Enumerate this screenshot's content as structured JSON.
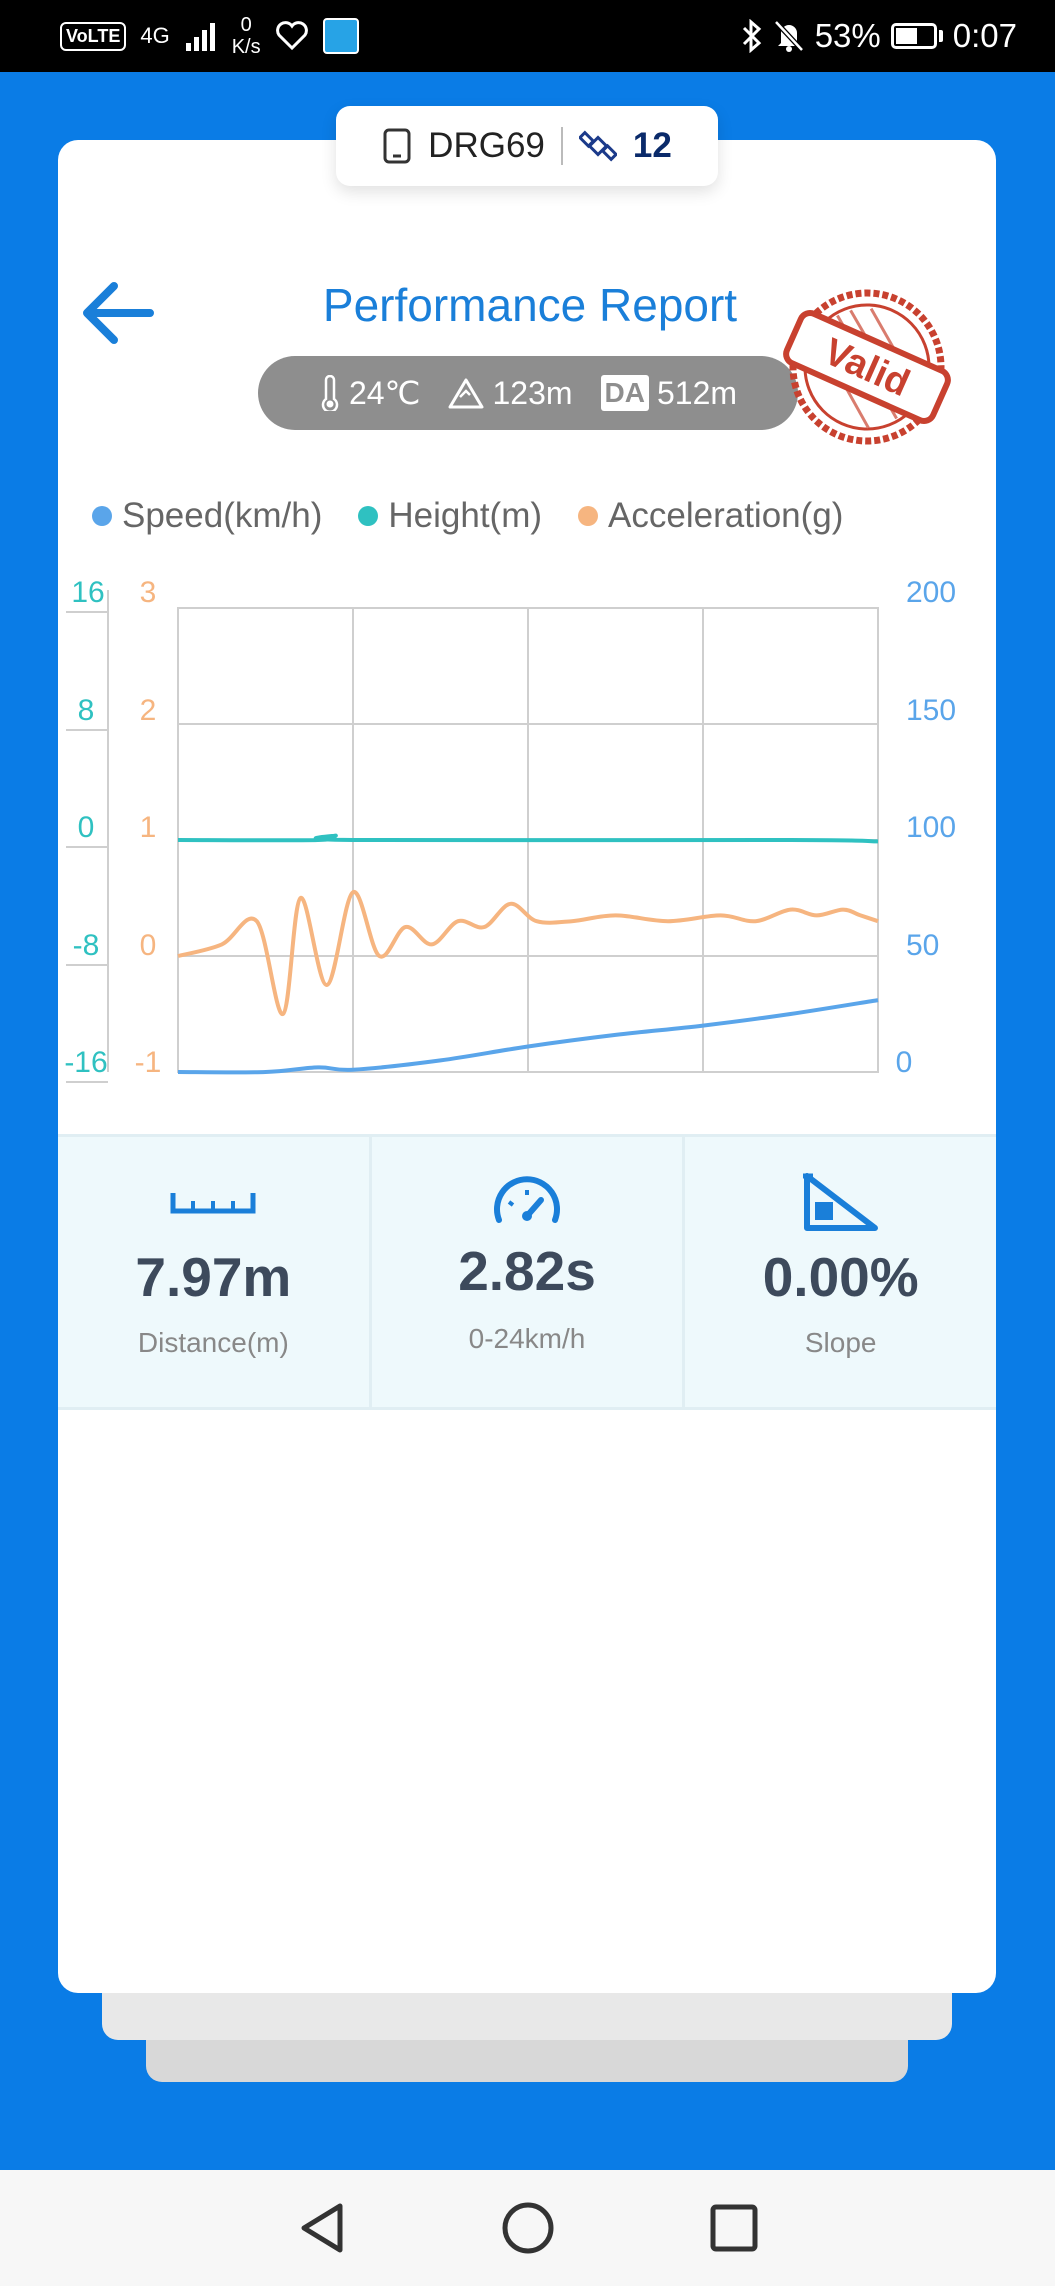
{
  "status_bar": {
    "volte": "VoLTE",
    "network": "4G",
    "net_speed_value": "0",
    "net_speed_unit": "K/s",
    "battery_percent": "53%",
    "time": "0:07"
  },
  "device": {
    "name": "DRG69",
    "satellites": "12"
  },
  "header": {
    "title": "Performance Report",
    "stamp": "Valid"
  },
  "conditions": {
    "temperature": "24℃",
    "altitude": "123m",
    "da_label": "DA",
    "density_altitude": "512m"
  },
  "colors": {
    "speed": "#5aa5ea",
    "height": "#2fc1c1",
    "acceleration": "#f6b580",
    "accent": "#1a7fd9",
    "background": "#0a7ce6"
  },
  "chart_data": {
    "type": "line",
    "legend_position": "top",
    "grid": true,
    "series": [
      {
        "name": "Speed(km/h)",
        "axis": "right",
        "ylim": [
          0,
          200
        ],
        "ticks": [
          "200",
          "150",
          "100",
          "50",
          "0"
        ],
        "x": [
          0,
          0.5,
          0.8,
          1.0,
          1.5,
          2.0,
          2.5,
          3.0,
          3.5,
          4.0
        ],
        "values": [
          0,
          0,
          2,
          1,
          5,
          11,
          16,
          20,
          25,
          31
        ]
      },
      {
        "name": "Height(m)",
        "axis": "left-outer",
        "ylim": [
          -16,
          16
        ],
        "ticks": [
          "16",
          "8",
          "0",
          "-8",
          "-16"
        ],
        "x": [
          0,
          0.8,
          0.9,
          1.0,
          3.5,
          4.0
        ],
        "values": [
          0,
          0,
          0.3,
          0,
          0,
          -0.1
        ]
      },
      {
        "name": "Acceleration(g)",
        "axis": "left-inner",
        "ylim": [
          -1,
          3
        ],
        "ticks": [
          "3",
          "2",
          "1",
          "0",
          "-1"
        ],
        "x": [
          0,
          0.25,
          0.45,
          0.6,
          0.7,
          0.85,
          1.0,
          1.15,
          1.3,
          1.45,
          1.6,
          1.75,
          1.9,
          2.05,
          2.25,
          2.5,
          2.8,
          3.1,
          3.3,
          3.5,
          3.65,
          3.8,
          3.9,
          4.0
        ],
        "values": [
          0,
          0.1,
          0.3,
          -0.5,
          0.5,
          -0.25,
          0.55,
          0.0,
          0.25,
          0.1,
          0.3,
          0.25,
          0.45,
          0.3,
          0.3,
          0.35,
          0.3,
          0.35,
          0.3,
          0.4,
          0.35,
          0.4,
          0.35,
          0.3
        ]
      }
    ]
  },
  "stats": [
    {
      "icon": "ruler-icon",
      "value": "7.97m",
      "label": "Distance(m)"
    },
    {
      "icon": "speedometer-icon",
      "value": "2.82s",
      "label": "0-24km/h"
    },
    {
      "icon": "slope-icon",
      "value": "0.00%",
      "label": "Slope"
    }
  ]
}
